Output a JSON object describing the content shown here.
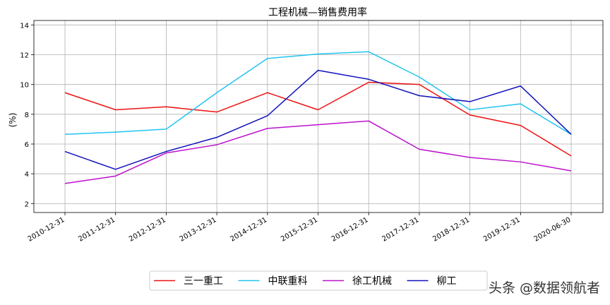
{
  "chart_data": {
    "type": "line",
    "title": "工程机械—销售费用率",
    "xlabel": "",
    "ylabel": "(%)",
    "categories": [
      "2010-12-31",
      "2011-12-31",
      "2012-12-31",
      "2013-12-31",
      "2014-12-31",
      "2015-12-31",
      "2016-12-31",
      "2017-12-31",
      "2018-12-31",
      "2019-12-31",
      "2020-06-30"
    ],
    "ylim": [
      1.4,
      14.3
    ],
    "yticks": [
      2,
      4,
      6,
      8,
      10,
      12,
      14
    ],
    "grid": true,
    "legend_position": "bottom-center",
    "series": [
      {
        "name": "三一重工",
        "color": "#ee1111",
        "values": [
          9.45,
          8.3,
          8.5,
          8.15,
          9.45,
          8.3,
          10.15,
          10.0,
          7.95,
          7.25,
          5.2
        ]
      },
      {
        "name": "中联重科",
        "color": "#22c4f0",
        "values": [
          6.65,
          6.8,
          7.0,
          9.45,
          11.75,
          12.05,
          12.2,
          10.5,
          8.3,
          8.7,
          6.65
        ]
      },
      {
        "name": "徐工机械",
        "color": "#bb11cc",
        "values": [
          3.35,
          3.85,
          5.4,
          5.95,
          7.05,
          7.3,
          7.55,
          5.65,
          5.1,
          4.8,
          4.2
        ]
      },
      {
        "name": "柳工",
        "color": "#1111bb",
        "values": [
          5.5,
          4.3,
          5.5,
          6.45,
          7.9,
          10.95,
          10.35,
          9.25,
          8.85,
          9.9,
          6.65
        ]
      }
    ]
  },
  "watermark": "头条 @数据领航者"
}
